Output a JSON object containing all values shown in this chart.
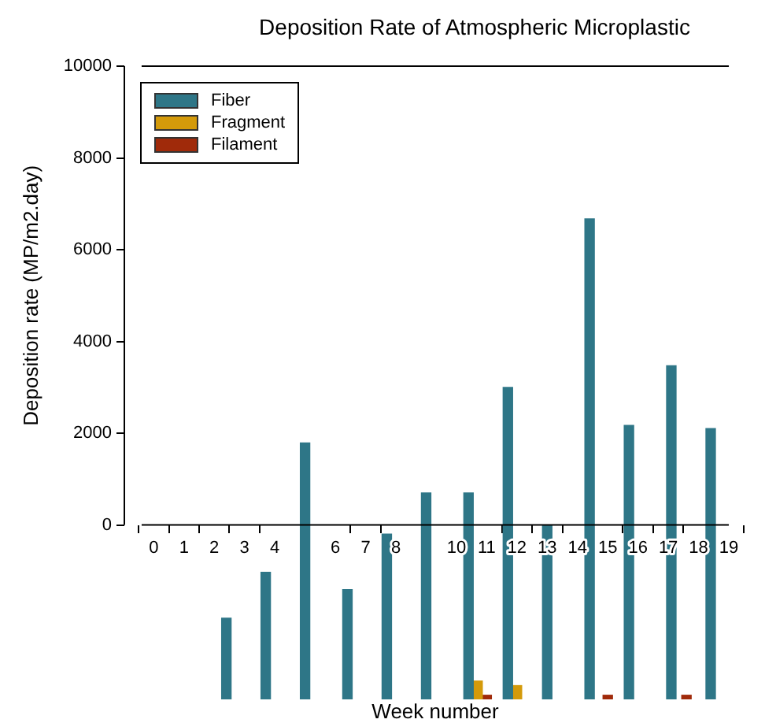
{
  "chart_data": {
    "type": "bar",
    "title": "Deposition Rate of Atmospheric Microplastic",
    "xlabel": "Week number",
    "ylabel": "Deposition rate (MP/m2.day)",
    "xlim": [
      -0.4,
      19
    ],
    "xticks": [
      0,
      1,
      2,
      3,
      4,
      6,
      7,
      8,
      10,
      11,
      12,
      13,
      14,
      15,
      16,
      17,
      18,
      19
    ],
    "ylim": [
      -3800,
      10000
    ],
    "yticks": [
      0,
      2000,
      4000,
      6000,
      8000,
      10000
    ],
    "grid": false,
    "legend": "top left",
    "series": [
      {
        "name": "Fiber",
        "color": "#2e7687",
        "x": [
          2.4,
          3.7,
          5,
          6.4,
          7.7,
          9,
          10.4,
          11.7,
          13,
          14.4,
          15.7,
          17.1,
          18.4
        ],
        "base": [
          -3800,
          -3800,
          -3800,
          -3800,
          -3800,
          -3800,
          -3800,
          -3800,
          -3800,
          -3800,
          -3800,
          -3800,
          -3800
        ],
        "values": [
          1770,
          2770,
          5590,
          2390,
          3600,
          4500,
          4500,
          6800,
          3800,
          10470,
          5970,
          7270,
          5900
        ]
      },
      {
        "name": "Fragment",
        "color": "#d49a0a",
        "x": [
          10.7,
          12
        ],
        "base": [
          -3800,
          -3800
        ],
        "values": [
          400,
          300
        ]
      },
      {
        "name": "Filament",
        "color": "#a02a0a",
        "x": [
          11,
          15,
          17.6
        ],
        "base": [
          -3800,
          -3800,
          -3800
        ],
        "values": [
          90,
          90,
          90
        ]
      }
    ]
  }
}
